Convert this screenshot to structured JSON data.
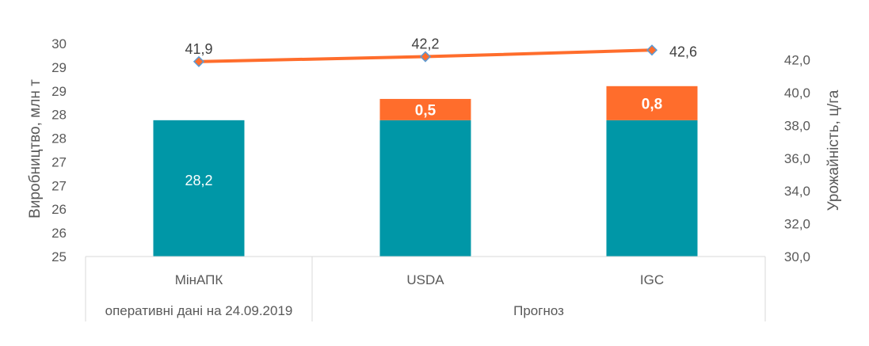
{
  "chart_data": {
    "type": "bar",
    "stacked": true,
    "categories": [
      "МінАПК",
      "USDA",
      "IGC"
    ],
    "groups": [
      {
        "label": "оперативні дані на 24.09.2019",
        "categories": [
          "МінАПК"
        ]
      },
      {
        "label": "Прогноз",
        "categories": [
          "USDA",
          "IGC"
        ]
      }
    ],
    "series": [
      {
        "values": [
          28.2,
          28.2,
          28.2
        ],
        "color": "#0097A7",
        "labels": [
          "28,2",
          "",
          ""
        ]
      },
      {
        "values": [
          0,
          0.5,
          0.8
        ],
        "color": "#FF6D2C",
        "labels": [
          "",
          "0,5",
          "0,8"
        ]
      }
    ],
    "line_series": {
      "values": [
        41.9,
        42.2,
        42.6
      ],
      "labels": [
        "41,9",
        "42,2",
        "42,6"
      ],
      "color": "#FF6D2C",
      "marker_color": "#5B9BD5",
      "axis": "right"
    },
    "ylabel": "Виробництво,  млн т",
    "ylabel_right": "Урожайність, ц/га",
    "ylim": [
      25,
      30
    ],
    "ylim_right": [
      30,
      43
    ],
    "y_ticks": [
      "25",
      "26",
      "26",
      "27",
      "27",
      "28",
      "28",
      "29",
      "29",
      "30"
    ],
    "y_ticks_right": [
      "30,0",
      "32,0",
      "34,0",
      "36,0",
      "38,0",
      "40,0",
      "42,0"
    ],
    "y_ticks_right_values": [
      30,
      32,
      34,
      36,
      38,
      40,
      42
    ],
    "legend": "none",
    "grid": false
  }
}
